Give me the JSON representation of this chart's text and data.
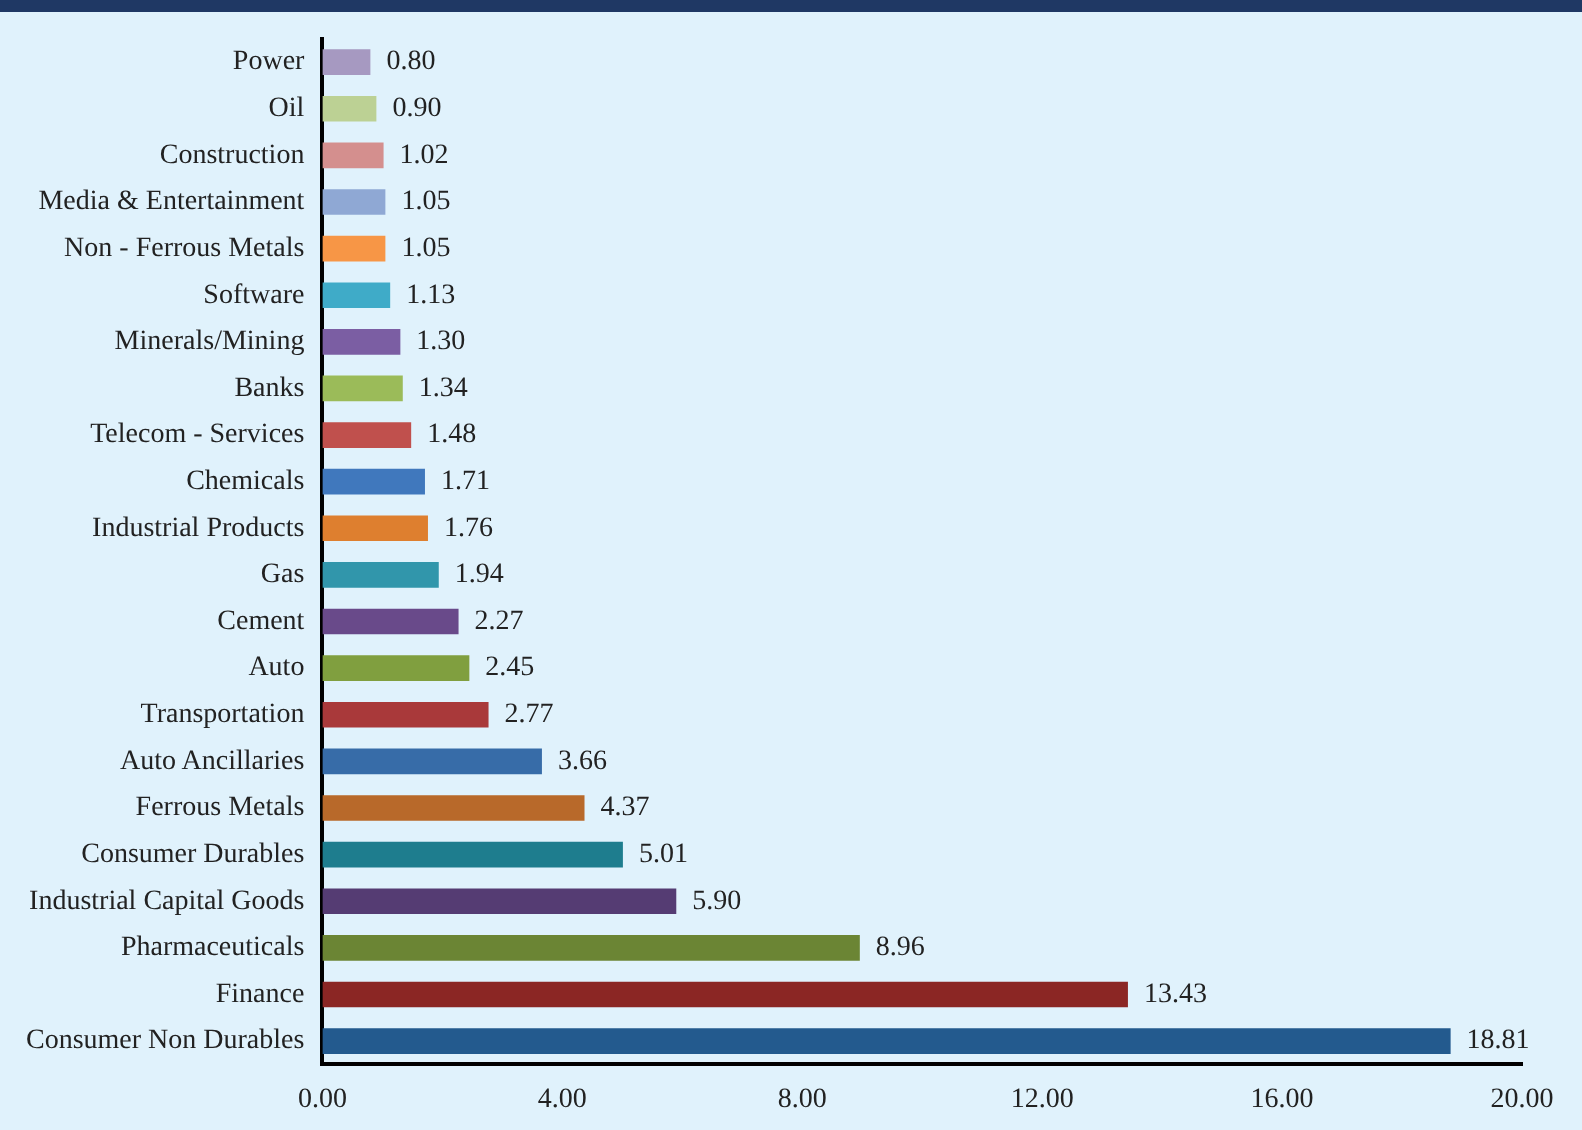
{
  "chart_data": {
    "type": "bar",
    "orientation": "horizontal",
    "categories": [
      "Power",
      "Oil",
      "Construction",
      "Media & Entertainment",
      "Non - Ferrous Metals",
      "Software",
      "Minerals/Mining",
      "Banks",
      "Telecom - Services",
      "Chemicals",
      "Industrial Products",
      "Gas",
      "Cement",
      "Auto",
      "Transportation",
      "Auto Ancillaries",
      "Ferrous Metals",
      "Consumer Durables",
      "Industrial Capital Goods",
      "Pharmaceuticals",
      "Finance",
      "Consumer Non Durables"
    ],
    "values": [
      0.8,
      0.9,
      1.02,
      1.05,
      1.05,
      1.13,
      1.3,
      1.34,
      1.48,
      1.71,
      1.76,
      1.94,
      2.27,
      2.45,
      2.77,
      3.66,
      4.37,
      5.01,
      5.9,
      8.96,
      13.43,
      18.81
    ],
    "value_labels": [
      "0.80",
      "0.90",
      "1.02",
      "1.05",
      "1.05",
      "1.13",
      "1.30",
      "1.34",
      "1.48",
      "1.71",
      "1.76",
      "1.94",
      "2.27",
      "2.45",
      "2.77",
      "3.66",
      "4.37",
      "5.01",
      "5.90",
      "8.96",
      "13.43",
      "18.81"
    ],
    "colors": [
      "#a699c1",
      "#bcd194",
      "#d48f8e",
      "#8fa8d4",
      "#f79646",
      "#3fabc8",
      "#7b5ea3",
      "#9bbb59",
      "#c0504d",
      "#4078bd",
      "#de7f2f",
      "#3196ab",
      "#694a8a",
      "#809f3f",
      "#a9393a",
      "#376ca8",
      "#b8692a",
      "#1e7d8e",
      "#553c73",
      "#6b8534",
      "#8b2624",
      "#235a8e"
    ],
    "xlim": [
      0,
      20
    ],
    "xticks": [
      {
        "value": 0,
        "label": "0.00"
      },
      {
        "value": 4,
        "label": "4.00"
      },
      {
        "value": 8,
        "label": "8.00"
      },
      {
        "value": 12,
        "label": "12.00"
      },
      {
        "value": 16,
        "label": "16.00"
      },
      {
        "value": 20,
        "label": "20.00"
      }
    ],
    "grid": false,
    "legend": false
  }
}
